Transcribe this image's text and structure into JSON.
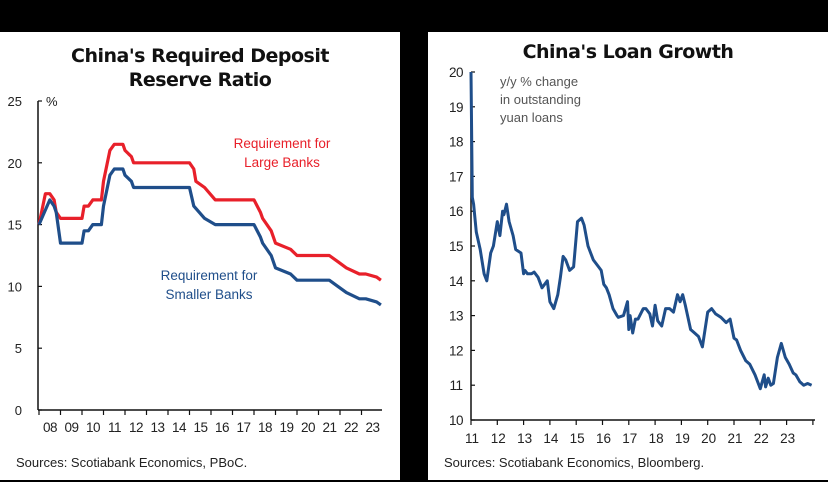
{
  "chart_data": [
    {
      "type": "line",
      "title": "China's Required Deposit Reserve Ratio",
      "ylabel": "%",
      "xlabel": "",
      "ylim": [
        0,
        25
      ],
      "yticks": [
        0,
        5,
        10,
        15,
        20,
        25
      ],
      "categories": [
        "08",
        "09",
        "10",
        "11",
        "12",
        "13",
        "14",
        "15",
        "16",
        "17",
        "18",
        "19",
        "20",
        "21",
        "22",
        "23"
      ],
      "grid": false,
      "series": [
        {
          "name": "Requirement for Large Banks",
          "color": "#e8202a",
          "x": [
            2008.0,
            2008.3,
            2008.5,
            2008.7,
            2008.8,
            2009.0,
            2010.0,
            2010.1,
            2010.3,
            2010.5,
            2010.9,
            2011.0,
            2011.3,
            2011.5,
            2011.9,
            2012.0,
            2012.3,
            2012.4,
            2015.0,
            2015.2,
            2015.3,
            2015.7,
            2016.2,
            2018.0,
            2018.3,
            2018.4,
            2018.8,
            2019.0,
            2019.7,
            2020.0,
            2021.5,
            2021.9,
            2022.3,
            2022.9,
            2023.2,
            2023.7,
            2023.9
          ],
          "values": [
            15.0,
            17.5,
            17.5,
            17.0,
            16.0,
            15.5,
            15.5,
            16.5,
            16.5,
            17.0,
            17.0,
            18.5,
            21.0,
            21.5,
            21.5,
            21.0,
            20.5,
            20.0,
            20.0,
            19.5,
            18.5,
            18.0,
            17.0,
            17.0,
            16.0,
            15.5,
            14.5,
            13.5,
            13.0,
            12.5,
            12.5,
            12.0,
            11.5,
            11.0,
            11.0,
            10.75,
            10.5
          ]
        },
        {
          "name": "Requirement for Smaller Banks",
          "color": "#1f4e8a",
          "x": [
            2008.0,
            2008.5,
            2008.7,
            2008.8,
            2009.0,
            2010.0,
            2010.1,
            2010.3,
            2010.5,
            2010.9,
            2011.0,
            2011.3,
            2011.5,
            2011.9,
            2012.0,
            2012.3,
            2012.4,
            2015.0,
            2015.2,
            2015.7,
            2016.2,
            2018.0,
            2018.3,
            2018.4,
            2018.8,
            2019.0,
            2019.7,
            2020.0,
            2021.5,
            2021.9,
            2022.3,
            2022.9,
            2023.2,
            2023.7,
            2023.9
          ],
          "values": [
            15.0,
            17.0,
            16.5,
            16.0,
            13.5,
            13.5,
            14.5,
            14.5,
            15.0,
            15.0,
            16.5,
            19.0,
            19.5,
            19.5,
            19.0,
            18.5,
            18.0,
            18.0,
            16.5,
            15.5,
            15.0,
            15.0,
            14.0,
            13.5,
            12.5,
            11.5,
            11.0,
            10.5,
            10.5,
            10.0,
            9.5,
            9.0,
            9.0,
            8.75,
            8.5
          ]
        }
      ],
      "annotations": [
        "Requirement for Large Banks",
        "Requirement for Smaller Banks"
      ]
    },
    {
      "type": "line",
      "title": "China's Loan Growth",
      "ylabel": "y/y % change in outstanding yuan loans",
      "xlabel": "",
      "ylim": [
        10,
        20
      ],
      "yticks": [
        10,
        11,
        12,
        13,
        14,
        15,
        16,
        17,
        18,
        19,
        20
      ],
      "categories": [
        "11",
        "12",
        "13",
        "14",
        "15",
        "16",
        "17",
        "18",
        "19",
        "20",
        "21",
        "22",
        "23"
      ],
      "grid": false,
      "series": [
        {
          "name": "Loan growth y/y %",
          "color": "#1f4e8a",
          "x": [
            2011.0,
            2011.05,
            2011.1,
            2011.2,
            2011.35,
            2011.5,
            2011.6,
            2011.75,
            2011.85,
            2012.0,
            2012.1,
            2012.2,
            2012.25,
            2012.35,
            2012.45,
            2012.6,
            2012.7,
            2012.9,
            2013.0,
            2013.05,
            2013.15,
            2013.3,
            2013.4,
            2013.55,
            2013.7,
            2013.9,
            2014.0,
            2014.15,
            2014.3,
            2014.4,
            2014.5,
            2014.6,
            2014.75,
            2014.9,
            2015.05,
            2015.2,
            2015.3,
            2015.45,
            2015.65,
            2015.85,
            2015.95,
            2016.05,
            2016.15,
            2016.25,
            2016.4,
            2016.55,
            2016.6,
            2016.8,
            2016.95,
            2017.0,
            2017.05,
            2017.15,
            2017.25,
            2017.35,
            2017.55,
            2017.65,
            2017.8,
            2017.9,
            2018.0,
            2018.1,
            2018.25,
            2018.4,
            2018.55,
            2018.7,
            2018.85,
            2018.95,
            2019.05,
            2019.15,
            2019.35,
            2019.5,
            2019.65,
            2019.8,
            2020.0,
            2020.15,
            2020.3,
            2020.5,
            2020.7,
            2020.85,
            2021.0,
            2021.1,
            2021.25,
            2021.45,
            2021.6,
            2021.8,
            2022.0,
            2022.15,
            2022.2,
            2022.3,
            2022.4,
            2022.5,
            2022.65,
            2022.8,
            2022.95,
            2023.1,
            2023.25,
            2023.35,
            2023.5,
            2023.65,
            2023.8,
            2023.95
          ],
          "values": [
            20.0,
            16.4,
            16.2,
            15.4,
            14.9,
            14.2,
            14.0,
            14.8,
            15.0,
            15.7,
            15.3,
            16.0,
            15.9,
            16.2,
            15.7,
            15.3,
            14.9,
            14.8,
            14.2,
            14.3,
            14.2,
            14.2,
            14.25,
            14.1,
            13.8,
            14.0,
            13.4,
            13.2,
            13.6,
            14.1,
            14.7,
            14.6,
            14.3,
            14.4,
            15.7,
            15.8,
            15.6,
            15.0,
            14.6,
            14.4,
            14.3,
            13.9,
            13.8,
            13.6,
            13.2,
            13.0,
            12.95,
            13.0,
            13.4,
            12.6,
            13.0,
            12.5,
            12.9,
            12.9,
            13.2,
            13.2,
            13.05,
            12.7,
            13.3,
            12.85,
            12.7,
            13.2,
            13.2,
            13.1,
            13.6,
            13.4,
            13.6,
            13.3,
            12.6,
            12.5,
            12.4,
            12.1,
            13.1,
            13.2,
            13.05,
            12.95,
            12.8,
            12.9,
            12.35,
            12.3,
            12.0,
            11.7,
            11.6,
            11.3,
            10.9,
            11.3,
            10.95,
            11.2,
            11.0,
            11.05,
            11.8,
            12.2,
            11.8,
            11.6,
            11.35,
            11.3,
            11.1,
            11.0,
            11.05,
            11.0
          ]
        }
      ]
    }
  ],
  "left": {
    "title_line1": "China's Required Deposit",
    "title_line2": "Reserve Ratio",
    "unit": "%",
    "label_large_1": "Requirement for",
    "label_large_2": "Large Banks",
    "label_small_1": "Requirement for",
    "label_small_2": "Smaller Banks",
    "source": "Sources: Scotiabank Economics, PBoC."
  },
  "right": {
    "title": "China's Loan Growth",
    "note_1": "y/y % change",
    "note_2": "in outstanding",
    "note_3": "yuan loans",
    "source": "Sources: Scotiabank Economics, Bloomberg."
  },
  "colors": {
    "large": "#e8202a",
    "small": "#1f4e8a",
    "loan": "#1f4e8a"
  }
}
